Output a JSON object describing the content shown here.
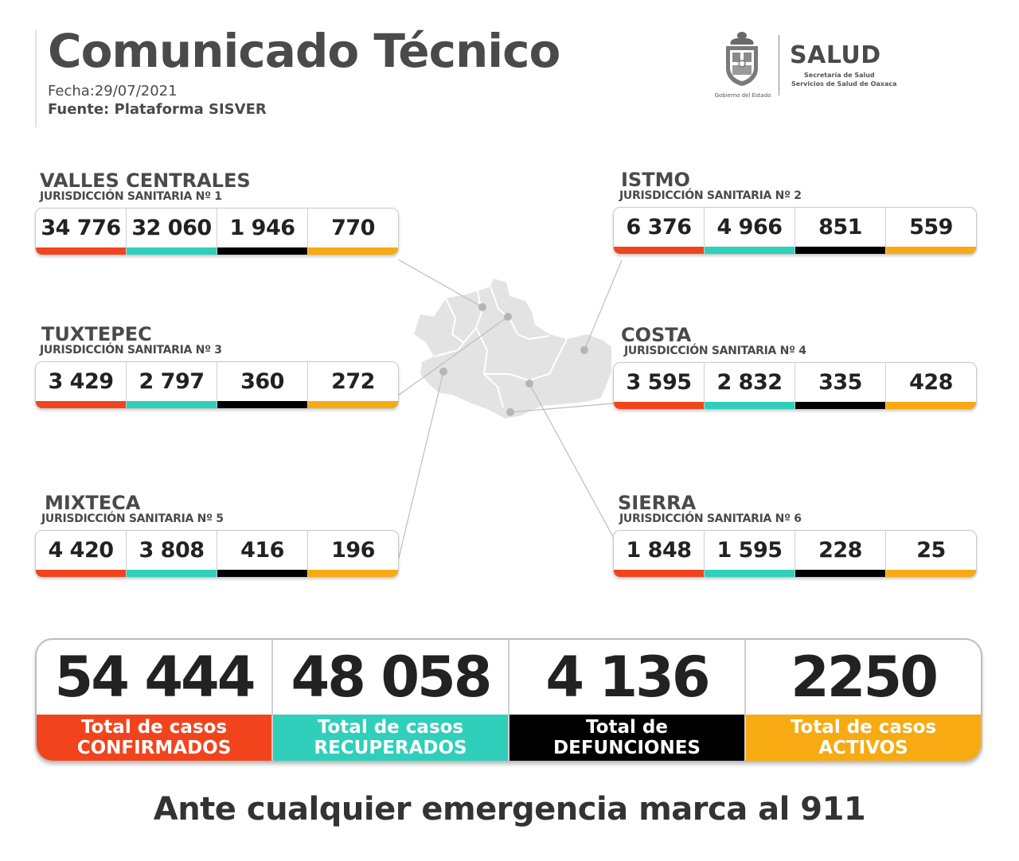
{
  "header": {
    "title": "Comunicado Técnico",
    "fecha": "Fecha:29/07/2021",
    "fuente": "Fuente: Plataforma SISVER"
  },
  "logo": {
    "seal_caption": "Gobierno del Estado",
    "brand": "SALUD",
    "sub1": "Secretaría de Salud",
    "sub2": "Servicios de Salud de Oaxaca"
  },
  "colors": {
    "confirmados": "#f2441c",
    "recuperados": "#2fcfbb",
    "defunciones": "#000000",
    "activos": "#f7aa12",
    "map": "#e3e3e3"
  },
  "regions": [
    {
      "name": "VALLES CENTRALES",
      "jurisdiccion": "JURISDICCIÓN SANITARIA Nº 1",
      "values": [
        "34 776",
        "32 060",
        "1 946",
        "770"
      ]
    },
    {
      "name": "ISTMO",
      "jurisdiccion": "JURISDICCIÓN SANITARIA Nº 2",
      "values": [
        "6 376",
        "4 966",
        "851",
        "559"
      ]
    },
    {
      "name": "TUXTEPEC",
      "jurisdiccion": "JURISDICCIÓN SANITARIA Nº 3",
      "values": [
        "3 429",
        "2 797",
        "360",
        "272"
      ]
    },
    {
      "name": "COSTA",
      "jurisdiccion": "JURISDICCIÓN SANITARIA Nº 4",
      "values": [
        "3 595",
        "2 832",
        "335",
        "428"
      ]
    },
    {
      "name": "MIXTECA",
      "jurisdiccion": "JURISDICCIÓN SANITARIA Nº 5",
      "values": [
        "4 420",
        "3 808",
        "416",
        "196"
      ]
    },
    {
      "name": "SIERRA",
      "jurisdiccion": "JURISDICCIÓN SANITARIA Nº 6",
      "values": [
        "1 848",
        "1 595",
        "228",
        "25"
      ]
    }
  ],
  "totals": [
    {
      "value": "54 444",
      "label1": "Total de casos",
      "label2": "CONFIRMADOS"
    },
    {
      "value": "48 058",
      "label1": "Total de casos",
      "label2": "RECUPERADOS"
    },
    {
      "value": "4 136",
      "label1": "Total de",
      "label2": "DEFUNCIONES"
    },
    {
      "value": "2250",
      "label1": "Total de casos",
      "label2": "ACTIVOS"
    }
  ],
  "footer": {
    "emergency": "Ante cualquier emergencia marca al 911"
  }
}
